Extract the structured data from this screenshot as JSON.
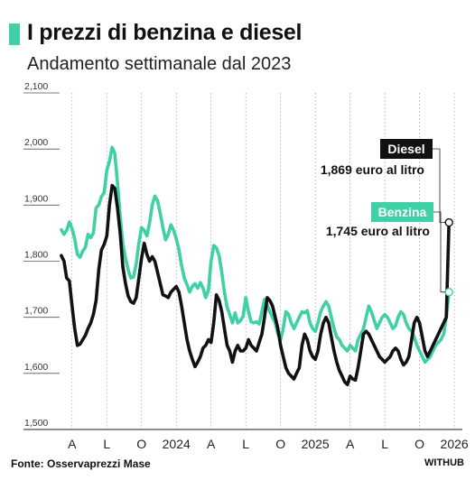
{
  "header": {
    "title": "I prezzi di benzina e diesel",
    "subtitle": "Andamento settimanale dal 2023"
  },
  "footer": {
    "source": "Fonte: Osservaprezzi Mase",
    "logo": "WITHUB"
  },
  "colors": {
    "diesel": "#111111",
    "benzina": "#3fd0a6",
    "accent": "#3fd0a6"
  },
  "chart_data": {
    "type": "line",
    "ylim": [
      1500,
      2100
    ],
    "yticks": [
      "2,100",
      "2,000",
      "1,900",
      "1,800",
      "1,700",
      "1,600",
      "1,500"
    ],
    "ytick_values": [
      2100,
      2000,
      1900,
      1800,
      1700,
      1600,
      1500
    ],
    "xticks": [
      "A",
      "L",
      "O",
      "2024",
      "A",
      "L",
      "O",
      "2025",
      "A",
      "L",
      "O",
      "2026"
    ],
    "xtick_positions": [
      4,
      17,
      30,
      43,
      56,
      69,
      82,
      95,
      108,
      121,
      134,
      147
    ],
    "xlim": [
      -2,
      150
    ],
    "grid": "vertical",
    "series": [
      {
        "name": "Benzina",
        "values": [
          [
            0,
            1856
          ],
          [
            1,
            1848
          ],
          [
            2,
            1855
          ],
          [
            3,
            1870
          ],
          [
            4,
            1858
          ],
          [
            5,
            1840
          ],
          [
            6,
            1812
          ],
          [
            7,
            1807
          ],
          [
            8,
            1818
          ],
          [
            9,
            1825
          ],
          [
            10,
            1848
          ],
          [
            11,
            1842
          ],
          [
            12,
            1850
          ],
          [
            13,
            1895
          ],
          [
            14,
            1900
          ],
          [
            15,
            1915
          ],
          [
            16,
            1922
          ],
          [
            17,
            1962
          ],
          [
            18,
            1978
          ],
          [
            19,
            2003
          ],
          [
            20,
            1992
          ],
          [
            21,
            1940
          ],
          [
            22,
            1880
          ],
          [
            23,
            1832
          ],
          [
            24,
            1805
          ],
          [
            25,
            1785
          ],
          [
            26,
            1770
          ],
          [
            27,
            1772
          ],
          [
            28,
            1795
          ],
          [
            29,
            1832
          ],
          [
            30,
            1860
          ],
          [
            31,
            1855
          ],
          [
            32,
            1845
          ],
          [
            33,
            1868
          ],
          [
            34,
            1900
          ],
          [
            35,
            1916
          ],
          [
            36,
            1908
          ],
          [
            37,
            1885
          ],
          [
            38,
            1860
          ],
          [
            39,
            1838
          ],
          [
            40,
            1848
          ],
          [
            41,
            1865
          ],
          [
            42,
            1855
          ],
          [
            43,
            1840
          ],
          [
            44,
            1820
          ],
          [
            45,
            1792
          ],
          [
            46,
            1770
          ],
          [
            47,
            1758
          ],
          [
            48,
            1745
          ],
          [
            49,
            1755
          ],
          [
            50,
            1760
          ],
          [
            51,
            1752
          ],
          [
            52,
            1762
          ],
          [
            53,
            1752
          ],
          [
            54,
            1735
          ],
          [
            55,
            1748
          ],
          [
            56,
            1800
          ],
          [
            57,
            1828
          ],
          [
            58,
            1824
          ],
          [
            59,
            1810
          ],
          [
            60,
            1780
          ],
          [
            61,
            1745
          ],
          [
            62,
            1718
          ],
          [
            63,
            1705
          ],
          [
            64,
            1690
          ],
          [
            65,
            1708
          ],
          [
            66,
            1690
          ],
          [
            67,
            1694
          ],
          [
            68,
            1702
          ],
          [
            69,
            1735
          ],
          [
            70,
            1710
          ],
          [
            71,
            1692
          ],
          [
            72,
            1690
          ],
          [
            73,
            1692
          ],
          [
            74,
            1688
          ],
          [
            75,
            1710
          ],
          [
            76,
            1732
          ],
          [
            77,
            1722
          ],
          [
            78,
            1710
          ],
          [
            79,
            1700
          ],
          [
            80,
            1690
          ],
          [
            81,
            1670
          ],
          [
            82,
            1660
          ],
          [
            83,
            1680
          ],
          [
            84,
            1710
          ],
          [
            85,
            1705
          ],
          [
            86,
            1690
          ],
          [
            87,
            1680
          ],
          [
            88,
            1690
          ],
          [
            89,
            1700
          ],
          [
            90,
            1710
          ],
          [
            91,
            1708
          ],
          [
            92,
            1712
          ],
          [
            93,
            1690
          ],
          [
            94,
            1680
          ],
          [
            95,
            1675
          ],
          [
            96,
            1690
          ],
          [
            97,
            1710
          ],
          [
            98,
            1720
          ],
          [
            99,
            1728
          ],
          [
            100,
            1720
          ],
          [
            101,
            1700
          ],
          [
            102,
            1680
          ],
          [
            103,
            1665
          ],
          [
            104,
            1660
          ],
          [
            105,
            1650
          ],
          [
            106,
            1645
          ],
          [
            107,
            1640
          ],
          [
            108,
            1650
          ],
          [
            109,
            1645
          ],
          [
            110,
            1640
          ],
          [
            111,
            1660
          ],
          [
            112,
            1670
          ],
          [
            113,
            1680
          ],
          [
            114,
            1700
          ],
          [
            115,
            1720
          ],
          [
            116,
            1710
          ],
          [
            117,
            1695
          ],
          [
            118,
            1680
          ],
          [
            119,
            1690
          ],
          [
            120,
            1700
          ],
          [
            121,
            1705
          ],
          [
            122,
            1700
          ],
          [
            123,
            1690
          ],
          [
            124,
            1680
          ],
          [
            125,
            1685
          ],
          [
            126,
            1700
          ],
          [
            127,
            1710
          ],
          [
            128,
            1705
          ],
          [
            129,
            1690
          ],
          [
            130,
            1680
          ],
          [
            131,
            1675
          ],
          [
            132,
            1665
          ],
          [
            133,
            1650
          ],
          [
            134,
            1640
          ],
          [
            135,
            1630
          ],
          [
            136,
            1620
          ],
          [
            137,
            1625
          ],
          [
            138,
            1630
          ],
          [
            139,
            1640
          ],
          [
            140,
            1650
          ],
          [
            141,
            1655
          ],
          [
            142,
            1660
          ],
          [
            143,
            1670
          ],
          [
            144,
            1700
          ],
          [
            145,
            1745
          ]
        ]
      },
      {
        "name": "Diesel",
        "values": [
          [
            0,
            1810
          ],
          [
            1,
            1800
          ],
          [
            2,
            1770
          ],
          [
            3,
            1765
          ],
          [
            4,
            1720
          ],
          [
            5,
            1680
          ],
          [
            6,
            1650
          ],
          [
            7,
            1652
          ],
          [
            8,
            1660
          ],
          [
            9,
            1668
          ],
          [
            10,
            1680
          ],
          [
            11,
            1690
          ],
          [
            12,
            1705
          ],
          [
            13,
            1730
          ],
          [
            14,
            1785
          ],
          [
            15,
            1820
          ],
          [
            16,
            1830
          ],
          [
            17,
            1845
          ],
          [
            18,
            1900
          ],
          [
            19,
            1935
          ],
          [
            20,
            1930
          ],
          [
            21,
            1895
          ],
          [
            22,
            1850
          ],
          [
            23,
            1790
          ],
          [
            24,
            1760
          ],
          [
            25,
            1738
          ],
          [
            26,
            1728
          ],
          [
            27,
            1725
          ],
          [
            28,
            1735
          ],
          [
            29,
            1770
          ],
          [
            30,
            1805
          ],
          [
            31,
            1832
          ],
          [
            32,
            1812
          ],
          [
            33,
            1800
          ],
          [
            34,
            1808
          ],
          [
            35,
            1800
          ],
          [
            36,
            1780
          ],
          [
            37,
            1760
          ],
          [
            38,
            1740
          ],
          [
            39,
            1738
          ],
          [
            40,
            1735
          ],
          [
            41,
            1745
          ],
          [
            42,
            1750
          ],
          [
            43,
            1755
          ],
          [
            44,
            1745
          ],
          [
            45,
            1720
          ],
          [
            46,
            1690
          ],
          [
            47,
            1660
          ],
          [
            48,
            1640
          ],
          [
            49,
            1625
          ],
          [
            50,
            1612
          ],
          [
            51,
            1620
          ],
          [
            52,
            1630
          ],
          [
            53,
            1645
          ],
          [
            54,
            1650
          ],
          [
            55,
            1660
          ],
          [
            56,
            1655
          ],
          [
            57,
            1690
          ],
          [
            58,
            1740
          ],
          [
            59,
            1730
          ],
          [
            60,
            1710
          ],
          [
            61,
            1680
          ],
          [
            62,
            1650
          ],
          [
            63,
            1640
          ],
          [
            64,
            1620
          ],
          [
            65,
            1640
          ],
          [
            66,
            1650
          ],
          [
            67,
            1640
          ],
          [
            68,
            1640
          ],
          [
            69,
            1645
          ],
          [
            70,
            1660
          ],
          [
            71,
            1650
          ],
          [
            72,
            1645
          ],
          [
            73,
            1640
          ],
          [
            74,
            1655
          ],
          [
            75,
            1670
          ],
          [
            76,
            1700
          ],
          [
            77,
            1735
          ],
          [
            78,
            1730
          ],
          [
            79,
            1720
          ],
          [
            80,
            1700
          ],
          [
            81,
            1680
          ],
          [
            82,
            1650
          ],
          [
            83,
            1630
          ],
          [
            84,
            1610
          ],
          [
            85,
            1600
          ],
          [
            86,
            1595
          ],
          [
            87,
            1590
          ],
          [
            88,
            1600
          ],
          [
            89,
            1610
          ],
          [
            90,
            1650
          ],
          [
            91,
            1670
          ],
          [
            92,
            1660
          ],
          [
            93,
            1640
          ],
          [
            94,
            1630
          ],
          [
            95,
            1625
          ],
          [
            96,
            1640
          ],
          [
            97,
            1670
          ],
          [
            98,
            1690
          ],
          [
            99,
            1700
          ],
          [
            100,
            1690
          ],
          [
            101,
            1665
          ],
          [
            102,
            1640
          ],
          [
            103,
            1620
          ],
          [
            104,
            1605
          ],
          [
            105,
            1595
          ],
          [
            106,
            1585
          ],
          [
            107,
            1580
          ],
          [
            108,
            1595
          ],
          [
            109,
            1590
          ],
          [
            110,
            1588
          ],
          [
            111,
            1610
          ],
          [
            112,
            1640
          ],
          [
            113,
            1670
          ],
          [
            114,
            1675
          ],
          [
            115,
            1670
          ],
          [
            116,
            1660
          ],
          [
            117,
            1650
          ],
          [
            118,
            1640
          ],
          [
            119,
            1630
          ],
          [
            120,
            1625
          ],
          [
            121,
            1620
          ],
          [
            122,
            1625
          ],
          [
            123,
            1630
          ],
          [
            124,
            1640
          ],
          [
            125,
            1645
          ],
          [
            126,
            1640
          ],
          [
            127,
            1625
          ],
          [
            128,
            1615
          ],
          [
            129,
            1620
          ],
          [
            130,
            1630
          ],
          [
            131,
            1660
          ],
          [
            132,
            1690
          ],
          [
            133,
            1700
          ],
          [
            134,
            1690
          ],
          [
            135,
            1665
          ],
          [
            136,
            1640
          ],
          [
            137,
            1630
          ],
          [
            138,
            1640
          ],
          [
            139,
            1650
          ],
          [
            140,
            1660
          ],
          [
            141,
            1670
          ],
          [
            142,
            1680
          ],
          [
            143,
            1690
          ],
          [
            144,
            1700
          ],
          [
            145,
            1869
          ]
        ]
      }
    ],
    "annotations": [
      {
        "series": "Diesel",
        "label": "Diesel",
        "text": "1,869 euro al litro"
      },
      {
        "series": "Benzina",
        "label": "Benzina",
        "text": "1,745 euro al litro"
      }
    ]
  }
}
